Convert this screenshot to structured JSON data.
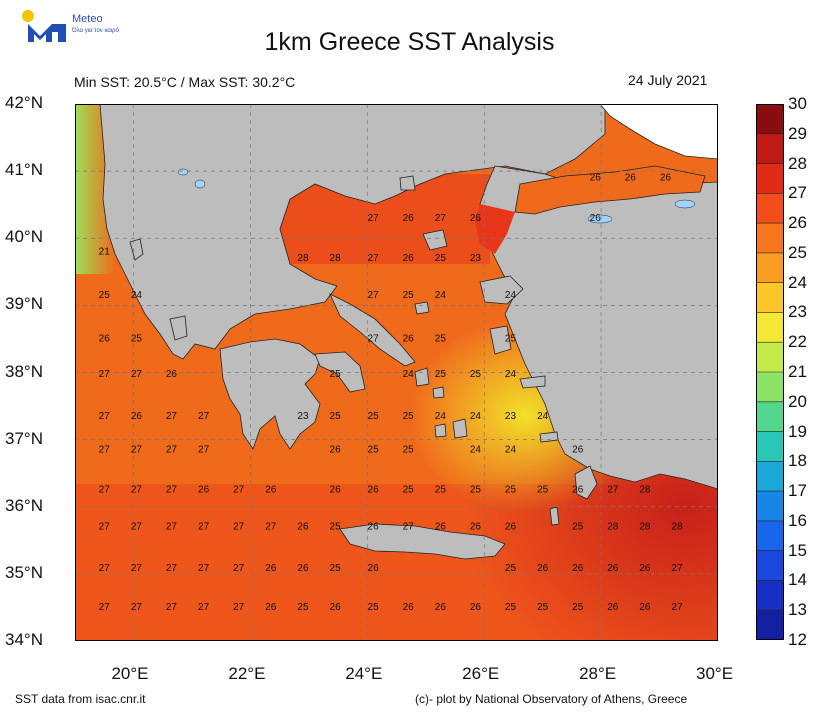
{
  "logo": {
    "name": "Meteo",
    "tagline": "Όλα για τον καιρό"
  },
  "title": "1km Greece SST Analysis",
  "subtitle_minmax": "Min SST: 20.5°C / Max SST: 30.2°C",
  "date": "24 July 2021",
  "footer_left": "SST data from isac.cnr.it",
  "footer_right": "(c)- plot by National Observatory of Athens, Greece",
  "axes": {
    "lat_labels": [
      "42°N",
      "41°N",
      "40°N",
      "39°N",
      "38°N",
      "37°N",
      "36°N",
      "35°N",
      "34°N"
    ],
    "lon_labels": [
      "20°E",
      "22°E",
      "24°E",
      "26°E",
      "28°E",
      "30°E"
    ],
    "lat_range": [
      34,
      42
    ],
    "lon_range": [
      19,
      30
    ]
  },
  "colorbar": {
    "labels": [
      "30",
      "29",
      "28",
      "27",
      "26",
      "25",
      "24",
      "23",
      "22",
      "21",
      "20",
      "19",
      "18",
      "17",
      "16",
      "15",
      "14",
      "13",
      "12"
    ],
    "range": [
      12,
      30
    ]
  },
  "colors": {
    "land": "#bdbdbd",
    "cold_sea": "#f0d020",
    "warm_sea": "#f05a1a",
    "hot_sea": "#d8261a"
  },
  "sst_values": [
    {
      "lon": 19.5,
      "lat": 39.8,
      "v": "21"
    },
    {
      "lon": 19.5,
      "lat": 39.15,
      "v": "25"
    },
    {
      "lon": 20.05,
      "lat": 39.15,
      "v": "24"
    },
    {
      "lon": 19.5,
      "lat": 38.5,
      "v": "26"
    },
    {
      "lon": 20.05,
      "lat": 38.5,
      "v": "25"
    },
    {
      "lon": 19.5,
      "lat": 37.97,
      "v": "27"
    },
    {
      "lon": 20.05,
      "lat": 37.97,
      "v": "27"
    },
    {
      "lon": 20.65,
      "lat": 37.97,
      "v": "26"
    },
    {
      "lon": 19.5,
      "lat": 37.35,
      "v": "27"
    },
    {
      "lon": 20.05,
      "lat": 37.35,
      "v": "26"
    },
    {
      "lon": 20.65,
      "lat": 37.35,
      "v": "27"
    },
    {
      "lon": 21.2,
      "lat": 37.35,
      "v": "27"
    },
    {
      "lon": 19.5,
      "lat": 36.85,
      "v": "27"
    },
    {
      "lon": 20.05,
      "lat": 36.85,
      "v": "27"
    },
    {
      "lon": 20.65,
      "lat": 36.85,
      "v": "27"
    },
    {
      "lon": 21.2,
      "lat": 36.85,
      "v": "27"
    },
    {
      "lon": 19.5,
      "lat": 36.25,
      "v": "27"
    },
    {
      "lon": 20.05,
      "lat": 36.25,
      "v": "27"
    },
    {
      "lon": 20.65,
      "lat": 36.25,
      "v": "27"
    },
    {
      "lon": 21.2,
      "lat": 36.25,
      "v": "26"
    },
    {
      "lon": 21.8,
      "lat": 36.25,
      "v": "27"
    },
    {
      "lon": 22.35,
      "lat": 36.25,
      "v": "26"
    },
    {
      "lon": 19.5,
      "lat": 35.7,
      "v": "27"
    },
    {
      "lon": 20.05,
      "lat": 35.7,
      "v": "27"
    },
    {
      "lon": 20.65,
      "lat": 35.7,
      "v": "27"
    },
    {
      "lon": 21.2,
      "lat": 35.7,
      "v": "27"
    },
    {
      "lon": 21.8,
      "lat": 35.7,
      "v": "27"
    },
    {
      "lon": 22.35,
      "lat": 35.7,
      "v": "27"
    },
    {
      "lon": 22.9,
      "lat": 35.7,
      "v": "26"
    },
    {
      "lon": 19.5,
      "lat": 35.08,
      "v": "27"
    },
    {
      "lon": 20.05,
      "lat": 35.08,
      "v": "27"
    },
    {
      "lon": 20.65,
      "lat": 35.08,
      "v": "27"
    },
    {
      "lon": 21.2,
      "lat": 35.08,
      "v": "27"
    },
    {
      "lon": 21.8,
      "lat": 35.08,
      "v": "27"
    },
    {
      "lon": 22.35,
      "lat": 35.08,
      "v": "26"
    },
    {
      "lon": 22.9,
      "lat": 35.08,
      "v": "26"
    },
    {
      "lon": 23.45,
      "lat": 35.08,
      "v": "25"
    },
    {
      "lon": 24.1,
      "lat": 35.08,
      "v": "26"
    },
    {
      "lon": 19.5,
      "lat": 34.5,
      "v": "27"
    },
    {
      "lon": 20.05,
      "lat": 34.5,
      "v": "27"
    },
    {
      "lon": 20.65,
      "lat": 34.5,
      "v": "27"
    },
    {
      "lon": 21.2,
      "lat": 34.5,
      "v": "27"
    },
    {
      "lon": 21.8,
      "lat": 34.5,
      "v": "27"
    },
    {
      "lon": 22.35,
      "lat": 34.5,
      "v": "26"
    },
    {
      "lon": 22.9,
      "lat": 34.5,
      "v": "25"
    },
    {
      "lon": 23.45,
      "lat": 34.5,
      "v": "26"
    },
    {
      "lon": 24.1,
      "lat": 34.5,
      "v": "25"
    },
    {
      "lon": 24.7,
      "lat": 34.5,
      "v": "26"
    },
    {
      "lon": 25.25,
      "lat": 34.5,
      "v": "26"
    },
    {
      "lon": 25.85,
      "lat": 34.5,
      "v": "26"
    },
    {
      "lon": 26.45,
      "lat": 34.5,
      "v": "25"
    },
    {
      "lon": 27.0,
      "lat": 34.5,
      "v": "25"
    },
    {
      "lon": 27.6,
      "lat": 34.5,
      "v": "25"
    },
    {
      "lon": 28.2,
      "lat": 34.5,
      "v": "26"
    },
    {
      "lon": 28.75,
      "lat": 34.5,
      "v": "26"
    },
    {
      "lon": 29.3,
      "lat": 34.5,
      "v": "27"
    },
    {
      "lon": 26.45,
      "lat": 35.08,
      "v": "25"
    },
    {
      "lon": 27.0,
      "lat": 35.08,
      "v": "26"
    },
    {
      "lon": 27.6,
      "lat": 35.08,
      "v": "26"
    },
    {
      "lon": 28.2,
      "lat": 35.08,
      "v": "26"
    },
    {
      "lon": 28.75,
      "lat": 35.08,
      "v": "26"
    },
    {
      "lon": 29.3,
      "lat": 35.08,
      "v": "27"
    },
    {
      "lon": 23.45,
      "lat": 35.7,
      "v": "25"
    },
    {
      "lon": 24.1,
      "lat": 35.7,
      "v": "26"
    },
    {
      "lon": 24.7,
      "lat": 35.7,
      "v": "27"
    },
    {
      "lon": 25.25,
      "lat": 35.7,
      "v": "26"
    },
    {
      "lon": 25.85,
      "lat": 35.7,
      "v": "26"
    },
    {
      "lon": 26.45,
      "lat": 35.7,
      "v": "26"
    },
    {
      "lon": 27.6,
      "lat": 35.7,
      "v": "25"
    },
    {
      "lon": 28.2,
      "lat": 35.7,
      "v": "28"
    },
    {
      "lon": 28.75,
      "lat": 35.7,
      "v": "28"
    },
    {
      "lon": 29.3,
      "lat": 35.7,
      "v": "28"
    },
    {
      "lon": 23.45,
      "lat": 36.25,
      "v": "26"
    },
    {
      "lon": 24.1,
      "lat": 36.25,
      "v": "26"
    },
    {
      "lon": 24.7,
      "lat": 36.25,
      "v": "25"
    },
    {
      "lon": 25.25,
      "lat": 36.25,
      "v": "25"
    },
    {
      "lon": 25.85,
      "lat": 36.25,
      "v": "25"
    },
    {
      "lon": 26.45,
      "lat": 36.25,
      "v": "25"
    },
    {
      "lon": 27.0,
      "lat": 36.25,
      "v": "25"
    },
    {
      "lon": 27.6,
      "lat": 36.25,
      "v": "26"
    },
    {
      "lon": 28.2,
      "lat": 36.25,
      "v": "27"
    },
    {
      "lon": 28.75,
      "lat": 36.25,
      "v": "28"
    },
    {
      "lon": 23.45,
      "lat": 36.85,
      "v": "26"
    },
    {
      "lon": 24.1,
      "lat": 36.85,
      "v": "25"
    },
    {
      "lon": 24.7,
      "lat": 36.85,
      "v": "25"
    },
    {
      "lon": 25.85,
      "lat": 36.85,
      "v": "24"
    },
    {
      "lon": 26.45,
      "lat": 36.85,
      "v": "24"
    },
    {
      "lon": 27.6,
      "lat": 36.85,
      "v": "26"
    },
    {
      "lon": 22.9,
      "lat": 37.35,
      "v": "23"
    },
    {
      "lon": 23.45,
      "lat": 37.35,
      "v": "25"
    },
    {
      "lon": 24.1,
      "lat": 37.35,
      "v": "25"
    },
    {
      "lon": 24.7,
      "lat": 37.35,
      "v": "25"
    },
    {
      "lon": 25.25,
      "lat": 37.35,
      "v": "24"
    },
    {
      "lon": 25.85,
      "lat": 37.35,
      "v": "24"
    },
    {
      "lon": 26.45,
      "lat": 37.35,
      "v": "23"
    },
    {
      "lon": 27.0,
      "lat": 37.35,
      "v": "24"
    },
    {
      "lon": 23.45,
      "lat": 37.97,
      "v": "25"
    },
    {
      "lon": 24.7,
      "lat": 37.97,
      "v": "24"
    },
    {
      "lon": 25.25,
      "lat": 37.97,
      "v": "25"
    },
    {
      "lon": 25.85,
      "lat": 37.97,
      "v": "25"
    },
    {
      "lon": 26.45,
      "lat": 37.97,
      "v": "24"
    },
    {
      "lon": 24.1,
      "lat": 38.5,
      "v": "27"
    },
    {
      "lon": 24.7,
      "lat": 38.5,
      "v": "26"
    },
    {
      "lon": 25.25,
      "lat": 38.5,
      "v": "25"
    },
    {
      "lon": 26.45,
      "lat": 38.5,
      "v": "25"
    },
    {
      "lon": 24.1,
      "lat": 39.15,
      "v": "27"
    },
    {
      "lon": 24.7,
      "lat": 39.15,
      "v": "25"
    },
    {
      "lon": 25.25,
      "lat": 39.15,
      "v": "24"
    },
    {
      "lon": 26.45,
      "lat": 39.15,
      "v": "24"
    },
    {
      "lon": 22.9,
      "lat": 39.7,
      "v": "28"
    },
    {
      "lon": 23.45,
      "lat": 39.7,
      "v": "28"
    },
    {
      "lon": 24.1,
      "lat": 39.7,
      "v": "27"
    },
    {
      "lon": 24.7,
      "lat": 39.7,
      "v": "26"
    },
    {
      "lon": 25.25,
      "lat": 39.7,
      "v": "25"
    },
    {
      "lon": 25.85,
      "lat": 39.7,
      "v": "23"
    },
    {
      "lon": 24.1,
      "lat": 40.3,
      "v": "27"
    },
    {
      "lon": 24.7,
      "lat": 40.3,
      "v": "26"
    },
    {
      "lon": 25.25,
      "lat": 40.3,
      "v": "27"
    },
    {
      "lon": 25.85,
      "lat": 40.3,
      "v": "26"
    },
    {
      "lon": 27.9,
      "lat": 40.9,
      "v": "26"
    },
    {
      "lon": 28.5,
      "lat": 40.9,
      "v": "26"
    },
    {
      "lon": 29.1,
      "lat": 40.9,
      "v": "26"
    },
    {
      "lon": 27.9,
      "lat": 40.3,
      "v": "26"
    }
  ]
}
